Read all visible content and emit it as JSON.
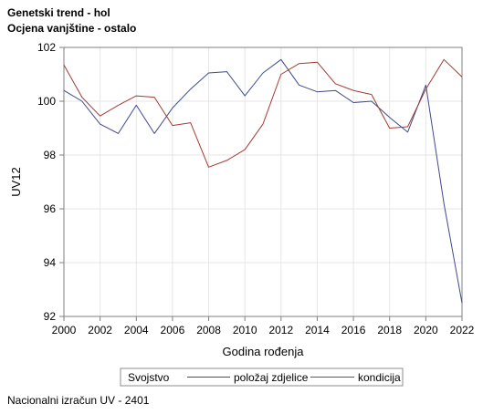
{
  "header": {
    "title": "Genetski trend - hol",
    "subtitle": "Ocjena vanjštine - ostalo"
  },
  "footer": {
    "note": "Nacionalni izračun UV - 2401"
  },
  "chart_data": {
    "type": "line",
    "title": "Genetski trend - hol",
    "subtitle": "Ocjena vanjštine - ostalo",
    "xlabel": "Godina rođenja",
    "ylabel": "UV12",
    "xlim": [
      2000,
      2022
    ],
    "ylim": [
      92,
      102
    ],
    "x_ticks": [
      2000,
      2002,
      2004,
      2006,
      2008,
      2010,
      2012,
      2014,
      2016,
      2018,
      2020,
      2022
    ],
    "y_ticks": [
      92,
      94,
      96,
      98,
      100,
      102
    ],
    "grid": true,
    "legend": {
      "title": "Svojstvo",
      "placement": "bottom"
    },
    "x": [
      2000,
      2001,
      2002,
      2003,
      2004,
      2005,
      2006,
      2007,
      2008,
      2009,
      2010,
      2011,
      2012,
      2013,
      2014,
      2015,
      2016,
      2017,
      2018,
      2019,
      2020,
      2021,
      2022
    ],
    "series": [
      {
        "name": "položaj zdjelice",
        "color": "#3e4a8c",
        "values": [
          100.4,
          100.0,
          99.15,
          98.8,
          99.85,
          98.8,
          99.75,
          100.45,
          101.05,
          101.1,
          100.2,
          101.05,
          101.55,
          100.6,
          100.35,
          100.4,
          99.95,
          100.0,
          99.4,
          98.85,
          100.6,
          96.2,
          92.5
        ]
      },
      {
        "name": "kondicija",
        "color": "#a23b32",
        "values": [
          101.35,
          100.15,
          99.45,
          99.85,
          100.2,
          100.15,
          99.1,
          99.2,
          97.55,
          97.8,
          98.2,
          99.15,
          101.0,
          101.4,
          101.45,
          100.65,
          100.4,
          100.25,
          99.0,
          99.05,
          100.45,
          101.55,
          100.9
        ]
      }
    ]
  }
}
